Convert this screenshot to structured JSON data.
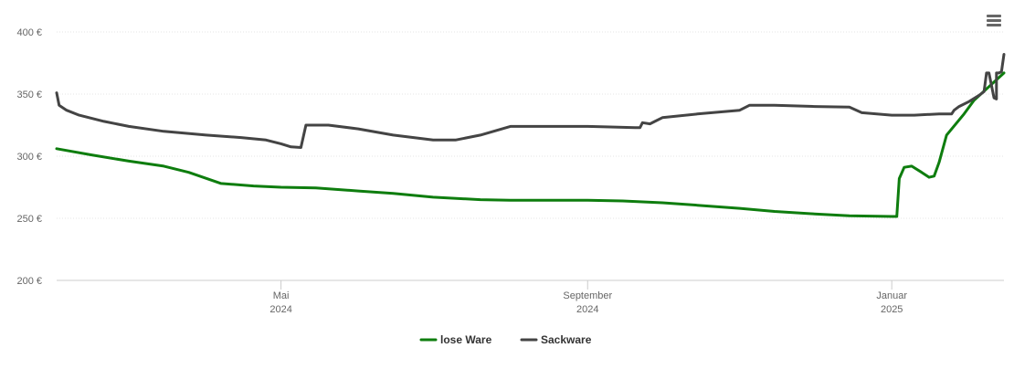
{
  "colors": {
    "lose_ware": "#0e7d0e",
    "sackware": "#444444",
    "grid": "#e6e6e6",
    "axis": "#cccccc",
    "text": "#666666",
    "legend_text": "#333333"
  },
  "toolbar": {
    "menu_icon": "hamburger-menu-icon"
  },
  "chart_data": {
    "type": "line",
    "title": "",
    "xlabel": "",
    "ylabel": "",
    "y_unit": "€",
    "ylim": [
      200,
      400
    ],
    "yticks": [
      200,
      250,
      300,
      350,
      400
    ],
    "ytick_labels": [
      "200 €",
      "250 €",
      "300 €",
      "350 €",
      "400 €"
    ],
    "xlim": [
      "2024-02-01",
      "2025-02-15"
    ],
    "xticks": [
      {
        "date": "2024-05-01",
        "month": "Mai",
        "year": "2024"
      },
      {
        "date": "2024-09-01",
        "month": "September",
        "year": "2024"
      },
      {
        "date": "2025-01-01",
        "month": "Januar",
        "year": "2025"
      }
    ],
    "grid": true,
    "legend_position": "bottom-center",
    "series": [
      {
        "name": "lose Ware",
        "color": "#0e7d0e",
        "points": [
          [
            "2024-02-01",
            306
          ],
          [
            "2024-02-15",
            301
          ],
          [
            "2024-03-01",
            296
          ],
          [
            "2024-03-15",
            292
          ],
          [
            "2024-03-25",
            287
          ],
          [
            "2024-04-07",
            278
          ],
          [
            "2024-04-20",
            276
          ],
          [
            "2024-05-01",
            275
          ],
          [
            "2024-05-15",
            274.5
          ],
          [
            "2024-06-01",
            272
          ],
          [
            "2024-06-15",
            270
          ],
          [
            "2024-07-01",
            267
          ],
          [
            "2024-07-20",
            265
          ],
          [
            "2024-08-01",
            264.5
          ],
          [
            "2024-08-15",
            264.5
          ],
          [
            "2024-09-01",
            264.5
          ],
          [
            "2024-09-15",
            264
          ],
          [
            "2024-10-01",
            262.5
          ],
          [
            "2024-10-15",
            260.5
          ],
          [
            "2024-11-01",
            258
          ],
          [
            "2024-11-15",
            255.5
          ],
          [
            "2024-12-01",
            253.5
          ],
          [
            "2024-12-15",
            252
          ],
          [
            "2025-01-01",
            251.5
          ],
          [
            "2025-01-03",
            251.5
          ],
          [
            "2025-01-04",
            282
          ],
          [
            "2025-01-06",
            291
          ],
          [
            "2025-01-09",
            292
          ],
          [
            "2025-01-13",
            287
          ],
          [
            "2025-01-16",
            283
          ],
          [
            "2025-01-18",
            284
          ],
          [
            "2025-01-20",
            295
          ],
          [
            "2025-01-23",
            317
          ],
          [
            "2025-01-30",
            334
          ],
          [
            "2025-02-03",
            345
          ],
          [
            "2025-02-15",
            367
          ]
        ]
      },
      {
        "name": "Sackware",
        "color": "#444444",
        "points": [
          [
            "2024-02-01",
            351
          ],
          [
            "2024-02-02",
            341
          ],
          [
            "2024-02-05",
            337
          ],
          [
            "2024-02-10",
            333
          ],
          [
            "2024-02-20",
            328
          ],
          [
            "2024-03-01",
            324
          ],
          [
            "2024-03-15",
            320
          ],
          [
            "2024-04-01",
            317
          ],
          [
            "2024-04-15",
            315
          ],
          [
            "2024-04-25",
            313
          ],
          [
            "2024-05-01",
            310
          ],
          [
            "2024-05-05",
            307.5
          ],
          [
            "2024-05-09",
            307
          ],
          [
            "2024-05-11",
            325
          ],
          [
            "2024-05-20",
            325
          ],
          [
            "2024-06-01",
            322
          ],
          [
            "2024-06-15",
            317
          ],
          [
            "2024-07-01",
            313
          ],
          [
            "2024-07-10",
            313
          ],
          [
            "2024-07-20",
            317
          ],
          [
            "2024-08-01",
            324
          ],
          [
            "2024-08-15",
            324
          ],
          [
            "2024-09-01",
            324
          ],
          [
            "2024-09-10",
            323.5
          ],
          [
            "2024-09-20",
            323
          ],
          [
            "2024-09-22",
            323
          ],
          [
            "2024-09-23",
            327
          ],
          [
            "2024-09-26",
            326
          ],
          [
            "2024-09-28",
            328
          ],
          [
            "2024-10-01",
            331
          ],
          [
            "2024-10-15",
            334
          ],
          [
            "2024-11-01",
            337
          ],
          [
            "2024-11-05",
            341
          ],
          [
            "2024-11-15",
            341
          ],
          [
            "2024-12-01",
            340
          ],
          [
            "2024-12-15",
            339.5
          ],
          [
            "2024-12-20",
            335
          ],
          [
            "2025-01-01",
            333
          ],
          [
            "2025-01-10",
            333
          ],
          [
            "2025-01-15",
            333.5
          ],
          [
            "2025-01-20",
            334
          ],
          [
            "2025-01-25",
            334
          ],
          [
            "2025-01-26",
            337
          ],
          [
            "2025-01-28",
            340
          ],
          [
            "2025-02-01",
            344
          ],
          [
            "2025-02-05",
            349
          ],
          [
            "2025-02-07",
            352
          ],
          [
            "2025-02-08",
            367
          ],
          [
            "2025-02-09",
            367
          ],
          [
            "2025-02-11",
            347
          ],
          [
            "2025-02-12",
            346
          ],
          [
            "2025-02-12",
            367
          ],
          [
            "2025-02-13",
            367
          ],
          [
            "2025-02-14",
            368
          ],
          [
            "2025-02-15",
            382
          ]
        ]
      }
    ]
  }
}
